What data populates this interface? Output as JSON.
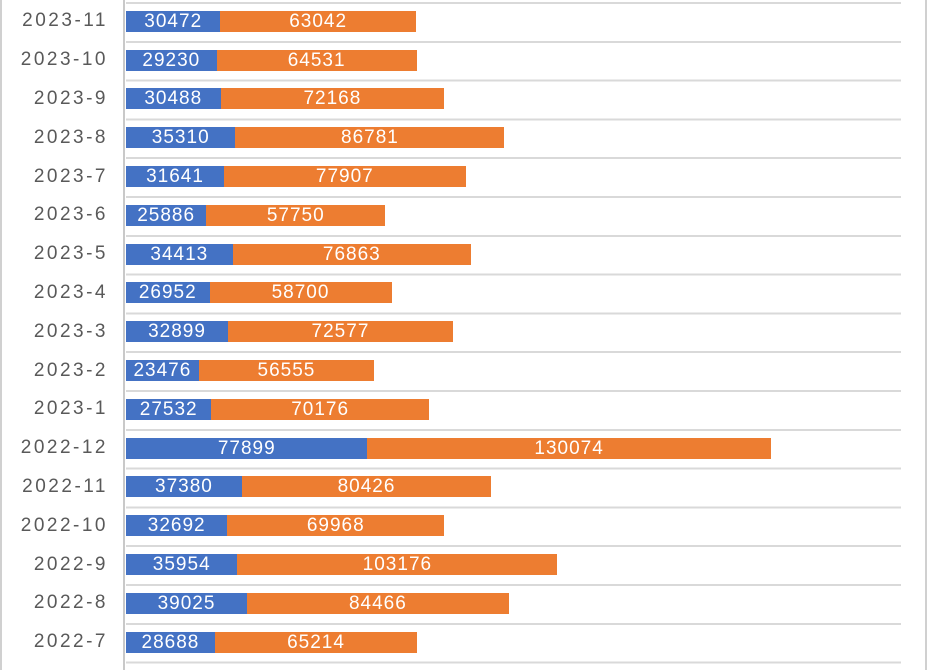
{
  "chart_data": {
    "type": "bar",
    "orientation": "horizontal",
    "stacked": true,
    "title": "",
    "xlabel": "",
    "ylabel": "",
    "xlim": [
      0,
      250000
    ],
    "grid": "category-boundary horizontal gridlines only",
    "legend_position": "none (cropped out of view)",
    "data_labels": "white values centered inside each segment",
    "categories": [
      "2023-11",
      "2023-10",
      "2023-9",
      "2023-8",
      "2023-7",
      "2023-6",
      "2023-5",
      "2023-4",
      "2023-3",
      "2023-2",
      "2023-1",
      "2022-12",
      "2022-11",
      "2022-10",
      "2022-9",
      "2022-8",
      "2022-7"
    ],
    "series": [
      {
        "name": "blue",
        "color": "#4472C4",
        "values": [
          30472,
          29230,
          30488,
          35310,
          31641,
          25886,
          34413,
          26952,
          32899,
          23476,
          27532,
          77899,
          37380,
          32692,
          35954,
          39025,
          28688
        ]
      },
      {
        "name": "orange",
        "color": "#ED7D31",
        "values": [
          63042,
          64531,
          72168,
          86781,
          77907,
          57750,
          76863,
          58700,
          72577,
          56555,
          70176,
          130074,
          80426,
          69968,
          103176,
          84466,
          65214
        ]
      }
    ]
  },
  "colors": {
    "series_blue": "#4472C4",
    "series_orange": "#ED7D31",
    "gridline": "#D9D9D9",
    "axis_line": "#C9C9C9",
    "frame_border": "#D0D0D0",
    "category_label": "#595959",
    "data_label": "#FFFFFF",
    "background": "#FFFFFF"
  }
}
